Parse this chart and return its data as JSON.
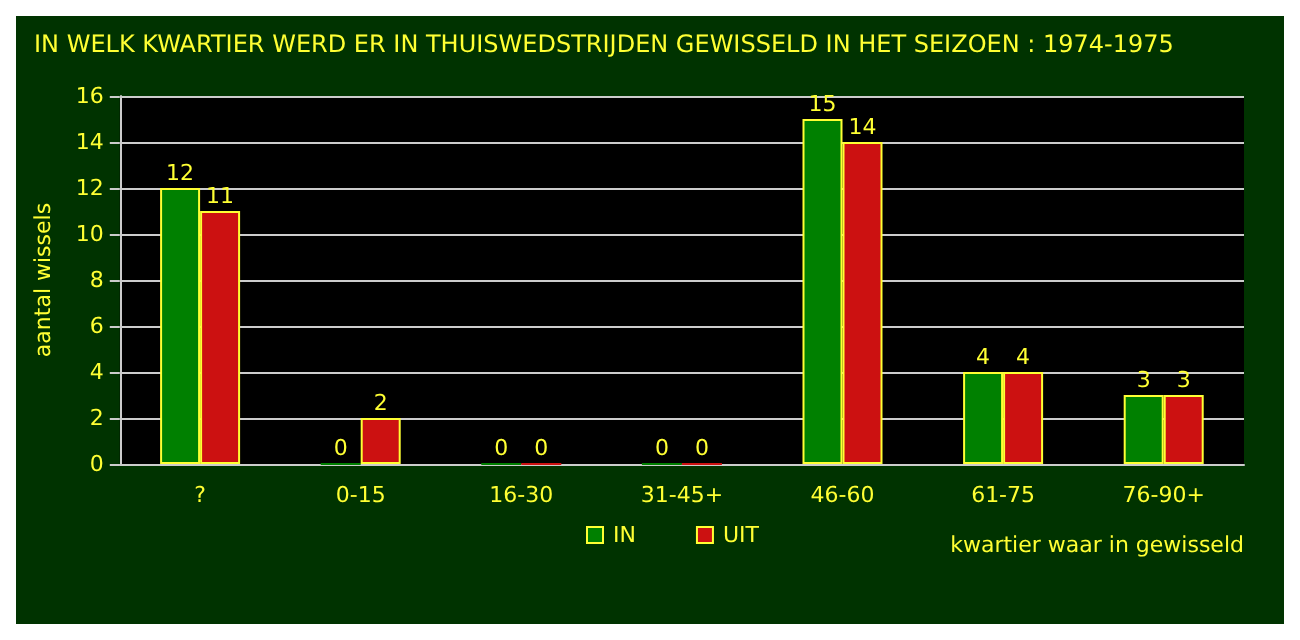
{
  "chart_data": {
    "type": "bar",
    "title": "IN WELK KWARTIER WERD ER IN THUISWEDSTRIJDEN GEWISSELD IN HET SEIZOEN : 1974-1975",
    "xlabel": "kwartier waar in gewisseld",
    "ylabel": "aantal wissels",
    "categories": [
      "?",
      "0-15",
      "16-30",
      "31-45+",
      "46-60",
      "61-75",
      "76-90+"
    ],
    "series": [
      {
        "name": "IN",
        "color": "#008000",
        "values": [
          12,
          0,
          0,
          0,
          15,
          4,
          3
        ]
      },
      {
        "name": "UIT",
        "color": "#cc1111",
        "values": [
          11,
          2,
          0,
          0,
          14,
          4,
          3
        ]
      }
    ],
    "ylim": [
      0,
      16
    ],
    "yticks": [
      0,
      2,
      4,
      6,
      8,
      10,
      12,
      14,
      16
    ],
    "grid": "y",
    "legend": "bottom",
    "data_labels": true
  }
}
